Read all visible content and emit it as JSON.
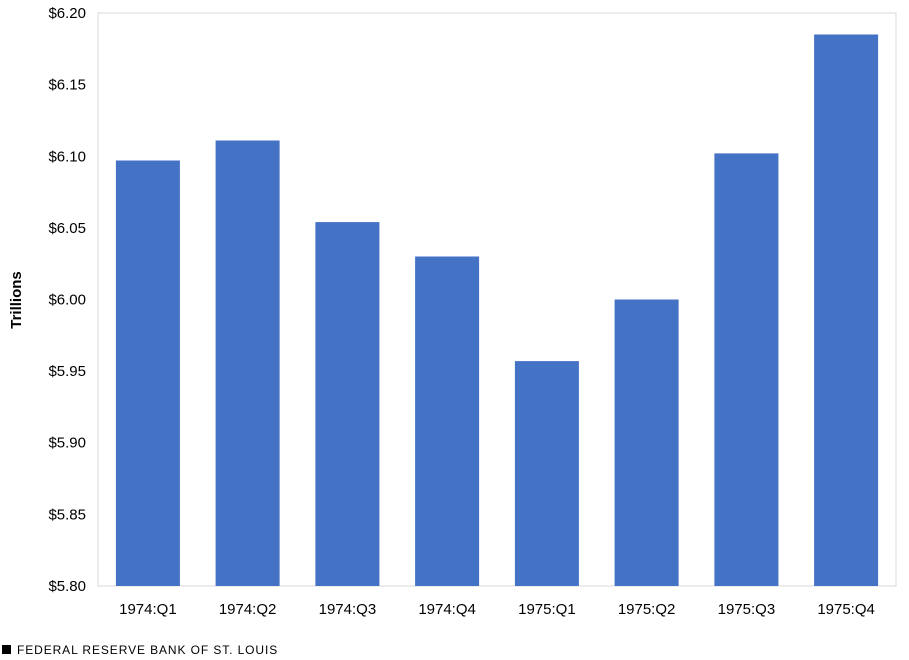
{
  "chart_data": {
    "type": "bar",
    "ylabel": "Trillions",
    "xlabel": "",
    "categories": [
      "1974:Q1",
      "1974:Q2",
      "1974:Q3",
      "1974:Q4",
      "1975:Q1",
      "1975:Q2",
      "1975:Q3",
      "1975:Q4"
    ],
    "values": [
      6.097,
      6.111,
      6.054,
      6.03,
      5.957,
      6.0,
      6.102,
      6.185
    ],
    "ylim": [
      5.8,
      6.2
    ],
    "yticks": [
      5.8,
      5.85,
      5.9,
      5.95,
      6.0,
      6.05,
      6.1,
      6.15,
      6.2
    ],
    "ytick_labels": [
      "$5.80",
      "$5.85",
      "$5.90",
      "$5.95",
      "$6.00",
      "$6.05",
      "$6.10",
      "$6.15",
      "$6.20"
    ],
    "bar_color": "#4472C4",
    "grid": false
  },
  "footer": {
    "source_label": "FEDERAL RESERVE BANK OF ST. LOUIS"
  }
}
